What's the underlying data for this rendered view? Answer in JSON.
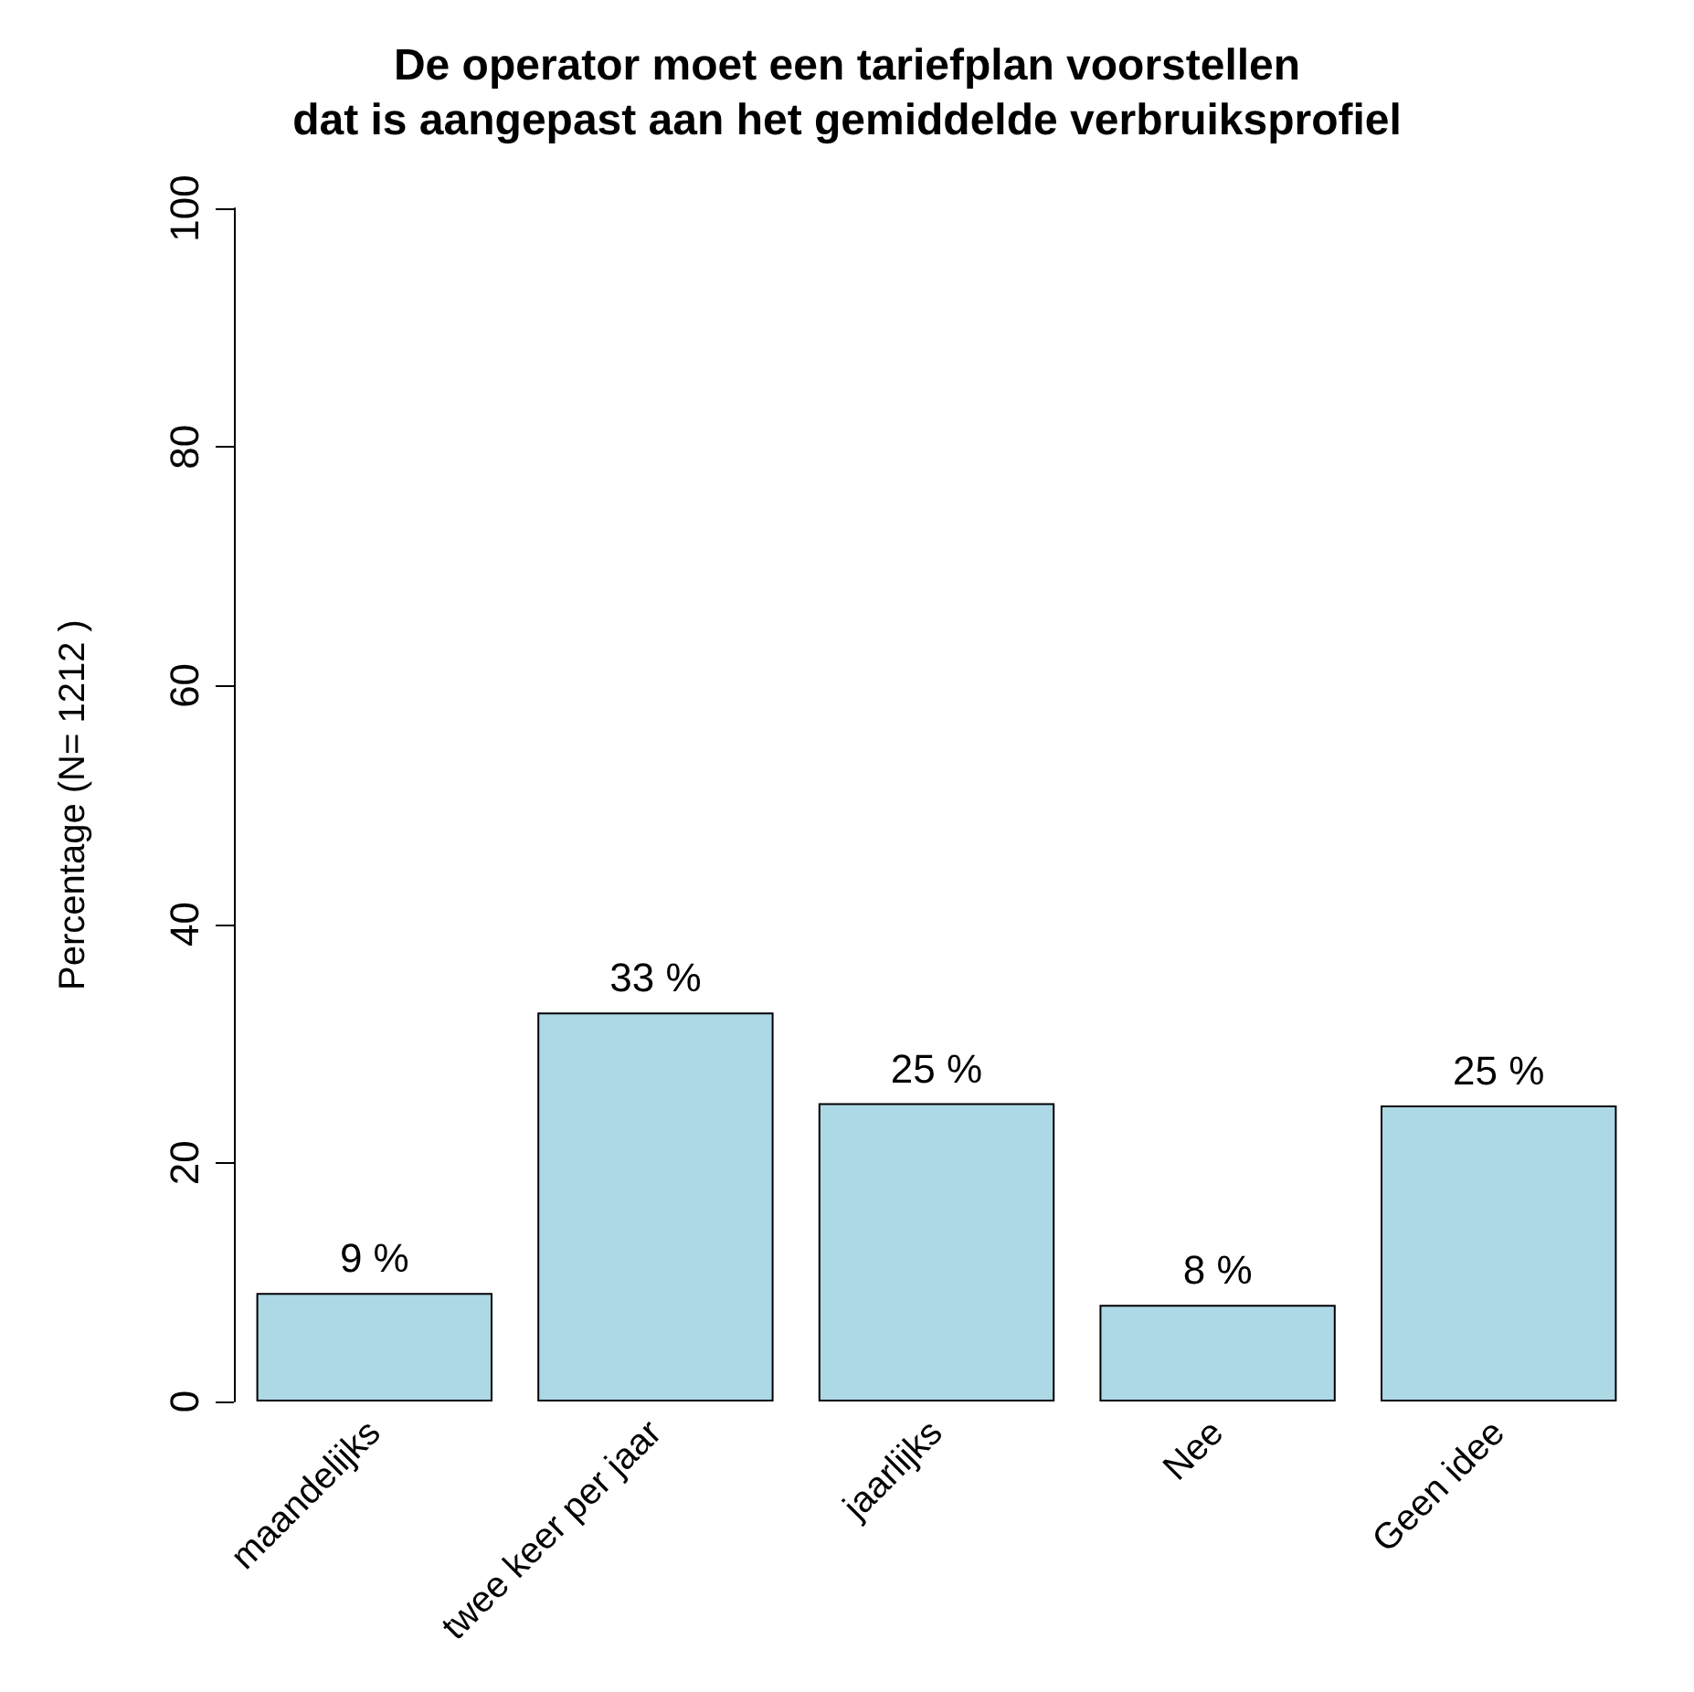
{
  "chart_data": {
    "type": "bar",
    "title": "De operator moet een tariefplan voorstellen\ndat is aangepast aan het gemiddelde verbruiksprofiel",
    "ylabel": "Percentage (N= 1212 )",
    "categories": [
      "maandelijks",
      "twee keer per jaar",
      "jaarlijks",
      "Nee",
      "Geen idee"
    ],
    "values": [
      9.1,
      32.6,
      25.0,
      8.1,
      24.8
    ],
    "value_labels": [
      "9 %",
      "33 %",
      "25 %",
      "8 %",
      "25 %"
    ],
    "color": "#add8e6",
    "ylim": [
      0,
      100
    ],
    "yticks": [
      0,
      20,
      40,
      60,
      80,
      100
    ],
    "grid": false
  }
}
